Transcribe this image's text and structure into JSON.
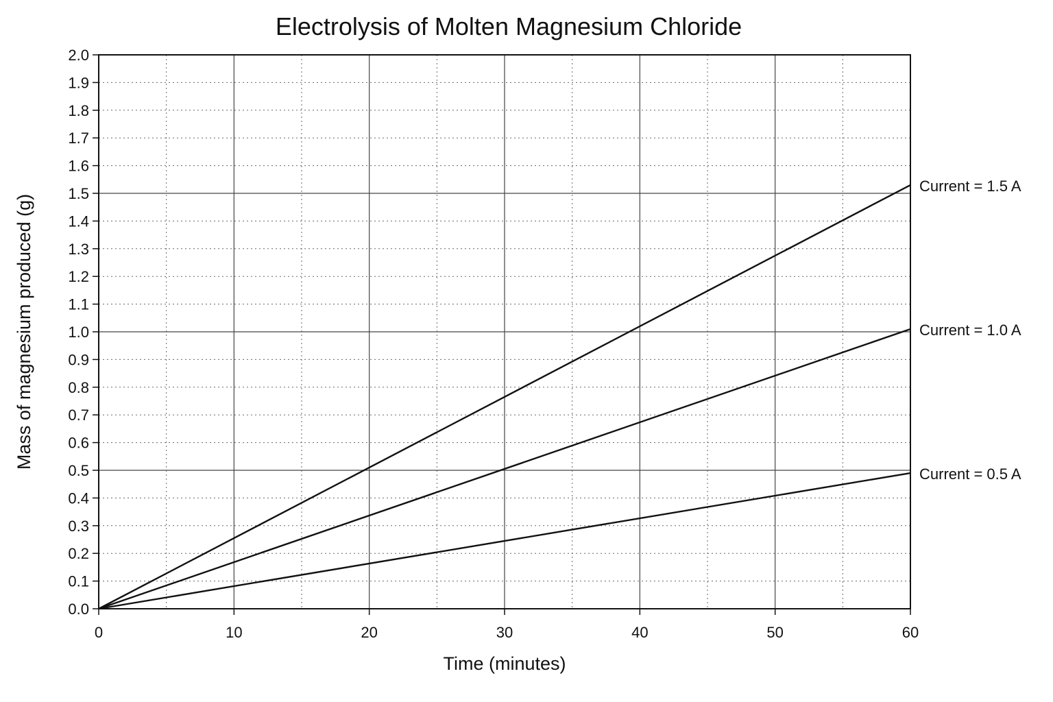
{
  "chart_data": {
    "type": "line",
    "title": "Electrolysis of Molten Magnesium Chloride",
    "xlabel": "Time (minutes)",
    "ylabel": "Mass of magnesium produced (g)",
    "xlim": [
      0,
      60
    ],
    "ylim": [
      0,
      2.0
    ],
    "x_ticks": [
      "0",
      "10",
      "20",
      "30",
      "40",
      "50",
      "60"
    ],
    "y_ticks": [
      "0.0",
      "0.1",
      "0.2",
      "0.3",
      "0.4",
      "0.5",
      "0.6",
      "0.7",
      "0.8",
      "0.9",
      "1.0",
      "1.1",
      "1.2",
      "1.3",
      "1.4",
      "1.5",
      "1.6",
      "1.7",
      "1.8",
      "1.9",
      "2.0"
    ],
    "grid": true,
    "legend": "labels at right end of lines",
    "series": [
      {
        "name": "Current = 1.5 A",
        "x": [
          0,
          60
        ],
        "y": [
          0,
          1.53
        ]
      },
      {
        "name": "Current = 1.0 A",
        "x": [
          0,
          60
        ],
        "y": [
          0,
          1.01
        ]
      },
      {
        "name": "Current = 0.5 A",
        "x": [
          0,
          60
        ],
        "y": [
          0,
          0.49
        ]
      }
    ]
  }
}
